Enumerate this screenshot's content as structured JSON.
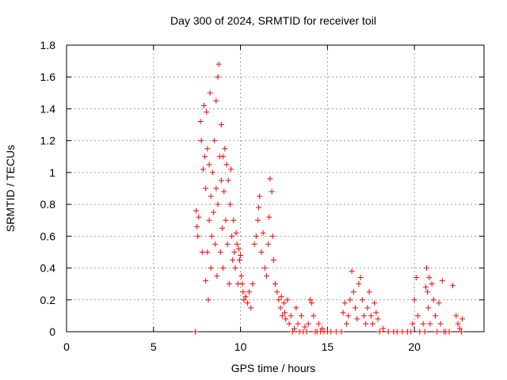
{
  "chart_data": {
    "type": "scatter",
    "title": "Day 300 of 2024, SRMTID for receiver toil",
    "xlabel": "GPS time / hours",
    "ylabel": "SRMTID / TECUs",
    "xlim": [
      0,
      24
    ],
    "ylim": [
      0,
      1.8
    ],
    "xticks": [
      0,
      5,
      10,
      15,
      20
    ],
    "xtick_labels": [
      "0",
      "5",
      "10",
      "15",
      "20"
    ],
    "yticks": [
      0,
      0.2,
      0.4,
      0.6,
      0.8,
      1,
      1.2,
      1.4,
      1.6,
      1.8
    ],
    "ytick_labels": [
      "0",
      "0.2",
      "0.4",
      "0.6",
      "0.8",
      "1",
      "1.2",
      "1.4",
      "1.6",
      "1.8"
    ],
    "grid": true,
    "marker": "plus",
    "color": "#ff0000",
    "series": [
      {
        "name": "SRMTID",
        "x": [
          7.4,
          7.45,
          7.5,
          7.55,
          7.6,
          7.7,
          7.75,
          7.8,
          7.85,
          7.9,
          7.95,
          8.0,
          8.0,
          8.05,
          8.1,
          8.1,
          8.15,
          8.2,
          8.2,
          8.25,
          8.3,
          8.3,
          8.35,
          8.4,
          8.45,
          8.5,
          8.55,
          8.6,
          8.6,
          8.65,
          8.7,
          8.7,
          8.75,
          8.8,
          8.85,
          8.9,
          8.9,
          8.95,
          9.0,
          9.0,
          9.05,
          9.1,
          9.15,
          9.2,
          9.25,
          9.3,
          9.35,
          9.4,
          9.45,
          9.5,
          9.55,
          9.6,
          9.65,
          9.7,
          9.75,
          9.8,
          9.85,
          9.9,
          9.95,
          10.0,
          10.05,
          10.1,
          10.15,
          10.2,
          10.3,
          10.4,
          10.5,
          10.6,
          10.7,
          10.8,
          10.9,
          11.0,
          11.05,
          11.1,
          11.2,
          11.3,
          11.4,
          11.5,
          11.6,
          11.65,
          11.7,
          11.8,
          11.85,
          11.9,
          12.0,
          12.1,
          12.2,
          12.3,
          12.35,
          12.4,
          12.5,
          12.55,
          12.6,
          12.7,
          12.8,
          12.9,
          13.0,
          13.1,
          13.2,
          13.3,
          13.4,
          13.5,
          13.6,
          13.7,
          13.8,
          13.9,
          14.0,
          14.1,
          14.2,
          14.3,
          14.4,
          14.5,
          14.6,
          14.7,
          14.8,
          15.0,
          15.2,
          15.5,
          15.8,
          15.9,
          16.0,
          16.1,
          16.2,
          16.3,
          16.4,
          16.5,
          16.6,
          16.7,
          16.8,
          16.9,
          17.0,
          17.1,
          17.2,
          17.3,
          17.4,
          17.5,
          17.6,
          17.7,
          17.8,
          17.9,
          18.0,
          18.2,
          18.5,
          18.8,
          19.0,
          19.3,
          19.6,
          19.8,
          19.9,
          20.0,
          20.1,
          20.2,
          20.3,
          20.5,
          20.6,
          20.65,
          20.7,
          20.75,
          20.8,
          20.85,
          20.9,
          21.0,
          21.1,
          21.2,
          21.3,
          21.4,
          21.5,
          21.6,
          21.7,
          21.8,
          22.0,
          22.2,
          22.4,
          22.5,
          22.6,
          22.7,
          22.75
        ],
        "y": [
          0.0,
          0.76,
          0.66,
          0.6,
          0.72,
          1.32,
          1.2,
          0.5,
          1.02,
          1.42,
          1.1,
          0.32,
          0.9,
          1.38,
          0.5,
          1.15,
          0.2,
          1.05,
          0.7,
          1.5,
          0.85,
          0.4,
          0.6,
          1.0,
          0.75,
          1.2,
          0.55,
          1.45,
          0.9,
          0.35,
          1.6,
          0.8,
          1.68,
          1.1,
          0.5,
          0.95,
          1.3,
          0.65,
          1.1,
          0.4,
          0.88,
          1.15,
          0.7,
          1.05,
          0.55,
          0.95,
          0.3,
          0.8,
          1.02,
          0.6,
          0.45,
          0.7,
          0.5,
          0.4,
          0.62,
          0.55,
          0.3,
          0.52,
          0.45,
          0.48,
          0.35,
          0.3,
          0.25,
          0.2,
          0.22,
          0.18,
          0.25,
          0.15,
          0.3,
          0.55,
          0.6,
          0.7,
          0.78,
          0.85,
          0.5,
          0.62,
          0.4,
          0.35,
          0.55,
          0.72,
          0.96,
          0.88,
          0.6,
          0.45,
          0.3,
          0.25,
          0.2,
          0.15,
          0.22,
          0.1,
          0.18,
          0.12,
          0.08,
          0.2,
          0.05,
          0.1,
          0.0,
          0.02,
          0.15,
          0.05,
          0.0,
          0.1,
          0.0,
          0.03,
          0.0,
          0.05,
          0.2,
          0.18,
          0.1,
          0.0,
          0.0,
          0.05,
          0.0,
          0.02,
          0.0,
          0.0,
          0.0,
          0.0,
          0.0,
          0.12,
          0.18,
          0.05,
          0.1,
          0.2,
          0.38,
          0.25,
          0.15,
          0.08,
          0.3,
          0.34,
          0.2,
          0.1,
          0.05,
          0.15,
          0.25,
          0.1,
          0.05,
          0.18,
          0.12,
          0.08,
          0.0,
          0.02,
          0.0,
          0.0,
          0.0,
          0.0,
          0.0,
          0.0,
          0.05,
          0.2,
          0.34,
          0.1,
          0.0,
          0.05,
          0.0,
          0.28,
          0.4,
          0.25,
          0.15,
          0.34,
          0.05,
          0.3,
          0.2,
          0.1,
          0.0,
          0.18,
          0.05,
          0.32,
          0.0,
          0.0,
          0.0,
          0.29,
          0.1,
          0.05,
          0.02,
          0.0,
          0.08
        ]
      }
    ]
  }
}
